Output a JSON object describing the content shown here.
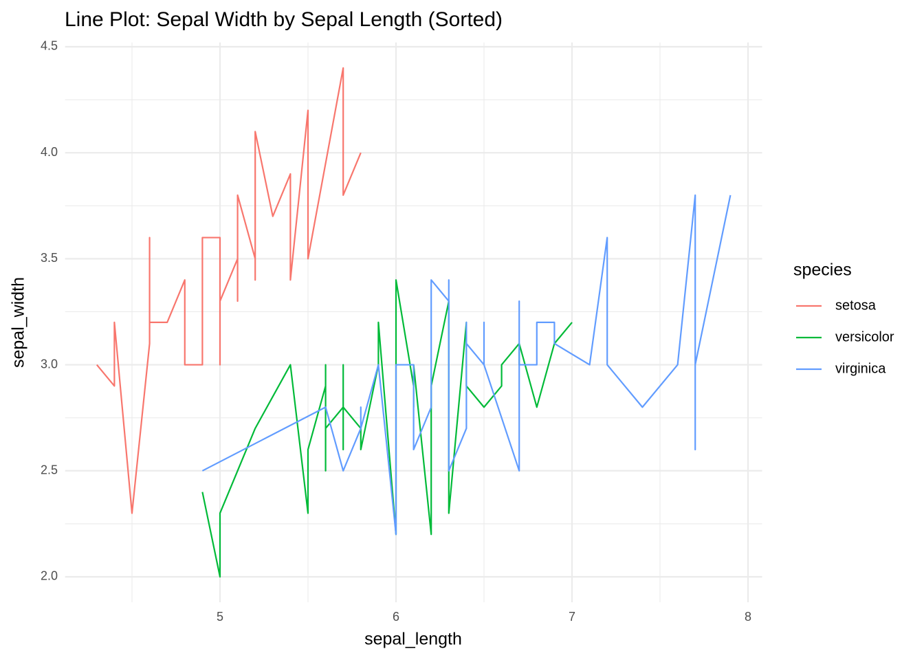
{
  "chart_data": {
    "type": "line",
    "title": "Line Plot: Sepal Width by Sepal Length (Sorted)",
    "x_label": "sepal_length",
    "y_label": "sepal_width",
    "legend_title": "species",
    "legend_position": "right",
    "grid": true,
    "xlim": [
      4.12,
      8.08
    ],
    "ylim": [
      1.88,
      4.52
    ],
    "xticks": [
      5,
      6,
      7,
      8
    ],
    "x_minor_ticks": [
      4.5,
      5.5,
      6.5,
      7.5
    ],
    "yticks": [
      {
        "value": 2,
        "label": "2.0"
      },
      2.5,
      {
        "value": 3,
        "label": "3.0"
      },
      3.5,
      {
        "value": 4,
        "label": "4.0"
      },
      4.5
    ],
    "y_minor_ticks": [
      2.25,
      2.75,
      3.25,
      3.75,
      4.25
    ],
    "series": [
      {
        "name": "setosa",
        "color": "#F8766D",
        "x": [
          4.3,
          4.4,
          4.4,
          4.4,
          4.5,
          4.6,
          4.6,
          4.6,
          4.6,
          4.7,
          4.7,
          4.8,
          4.8,
          4.8,
          4.8,
          4.8,
          4.9,
          4.9,
          4.9,
          4.9,
          5.0,
          5.0,
          5.0,
          5.0,
          5.0,
          5.0,
          5.0,
          5.0,
          5.1,
          5.1,
          5.1,
          5.1,
          5.1,
          5.1,
          5.1,
          5.1,
          5.2,
          5.2,
          5.2,
          5.3,
          5.4,
          5.4,
          5.4,
          5.4,
          5.4,
          5.5,
          5.5,
          5.7,
          5.7,
          5.8
        ],
        "values": [
          3.0,
          2.9,
          3.0,
          3.2,
          2.3,
          3.1,
          3.4,
          3.6,
          3.2,
          3.2,
          3.2,
          3.4,
          3.0,
          3.4,
          3.1,
          3.0,
          3.0,
          3.1,
          3.1,
          3.6,
          3.6,
          3.4,
          3.0,
          3.4,
          3.2,
          3.5,
          3.5,
          3.3,
          3.5,
          3.5,
          3.8,
          3.7,
          3.3,
          3.4,
          3.8,
          3.8,
          3.5,
          3.4,
          4.1,
          3.7,
          3.9,
          3.7,
          3.9,
          3.4,
          3.4,
          4.2,
          3.5,
          4.4,
          3.8,
          4.0
        ]
      },
      {
        "name": "versicolor",
        "color": "#00BA38",
        "x": [
          4.9,
          5.0,
          5.0,
          5.1,
          5.2,
          5.4,
          5.5,
          5.5,
          5.5,
          5.5,
          5.5,
          5.6,
          5.6,
          5.6,
          5.6,
          5.6,
          5.7,
          5.7,
          5.7,
          5.7,
          5.7,
          5.8,
          5.8,
          5.8,
          5.9,
          5.9,
          6.0,
          6.0,
          6.0,
          6.0,
          6.1,
          6.1,
          6.1,
          6.1,
          6.2,
          6.2,
          6.3,
          6.3,
          6.3,
          6.4,
          6.4,
          6.5,
          6.6,
          6.6,
          6.7,
          6.7,
          6.7,
          6.8,
          6.9,
          7.0
        ],
        "values": [
          2.4,
          2.0,
          2.3,
          2.5,
          2.7,
          3.0,
          2.3,
          2.4,
          2.4,
          2.5,
          2.6,
          2.9,
          3.0,
          2.5,
          3.0,
          2.7,
          2.8,
          2.6,
          3.0,
          2.9,
          2.8,
          2.7,
          2.7,
          2.6,
          3.0,
          3.2,
          2.2,
          2.9,
          2.7,
          3.4,
          2.9,
          2.8,
          2.8,
          3.0,
          2.2,
          2.9,
          3.3,
          2.5,
          2.3,
          3.2,
          2.9,
          2.8,
          2.9,
          3.0,
          3.1,
          3.0,
          3.1,
          2.8,
          3.1,
          3.2
        ]
      },
      {
        "name": "virginica",
        "color": "#619CFF",
        "x": [
          4.9,
          5.6,
          5.7,
          5.8,
          5.8,
          5.8,
          5.9,
          6.0,
          6.0,
          6.1,
          6.1,
          6.2,
          6.2,
          6.3,
          6.3,
          6.3,
          6.3,
          6.3,
          6.3,
          6.4,
          6.4,
          6.4,
          6.4,
          6.4,
          6.5,
          6.5,
          6.5,
          6.5,
          6.7,
          6.7,
          6.7,
          6.7,
          6.7,
          6.8,
          6.8,
          6.9,
          6.9,
          6.9,
          7.1,
          7.2,
          7.2,
          7.2,
          7.3,
          7.4,
          7.6,
          7.7,
          7.7,
          7.7,
          7.7,
          7.9
        ],
        "values": [
          2.5,
          2.8,
          2.5,
          2.7,
          2.8,
          2.7,
          3.0,
          2.2,
          3.0,
          3.0,
          2.6,
          2.8,
          3.4,
          3.3,
          2.9,
          2.7,
          2.8,
          3.4,
          2.5,
          2.7,
          3.2,
          2.8,
          2.8,
          3.1,
          3.0,
          3.2,
          3.0,
          3.0,
          2.5,
          3.3,
          3.1,
          3.3,
          3.0,
          3.0,
          3.2,
          3.2,
          3.1,
          3.1,
          3.0,
          3.6,
          3.2,
          3.0,
          2.9,
          2.8,
          3.0,
          3.8,
          2.6,
          2.8,
          3.0,
          3.8
        ]
      }
    ]
  }
}
